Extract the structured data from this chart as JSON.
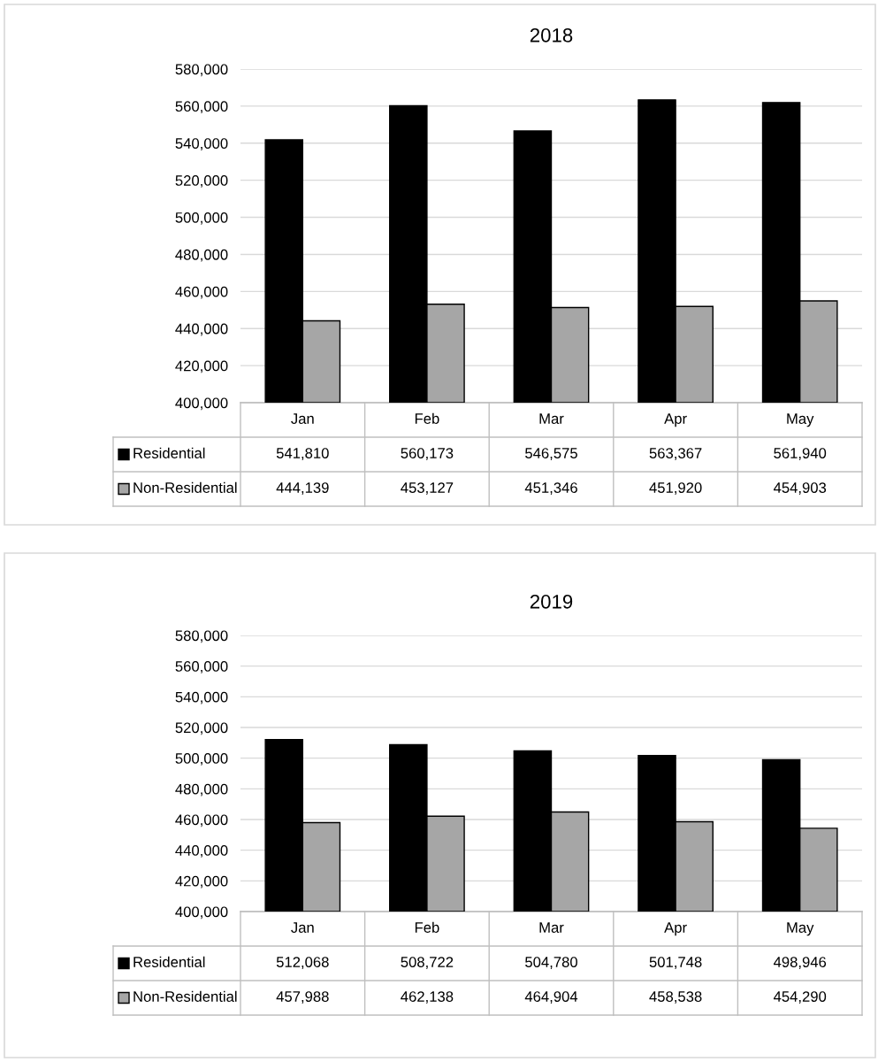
{
  "chart_data": [
    {
      "type": "bar",
      "title": "2018",
      "categories": [
        "Jan",
        "Feb",
        "Mar",
        "Apr",
        "May"
      ],
      "series": [
        {
          "name": "Residential",
          "color": "#000000",
          "values": [
            541810,
            560173,
            546575,
            563367,
            561940
          ],
          "value_labels": [
            "541,810",
            "560,173",
            "546,575",
            "563,367",
            "561,940"
          ]
        },
        {
          "name": "Non-Residential",
          "color": "#a6a6a6",
          "values": [
            444139,
            453127,
            451346,
            451920,
            454903
          ],
          "value_labels": [
            "444,139",
            "453,127",
            "451,346",
            "451,920",
            "454,903"
          ]
        }
      ],
      "ylim": [
        400000,
        580000
      ],
      "yticks": [
        {
          "value": 400000,
          "label": "400,000"
        },
        {
          "value": 420000,
          "label": "420,000"
        },
        {
          "value": 440000,
          "label": "440,000"
        },
        {
          "value": 460000,
          "label": "460,000"
        },
        {
          "value": 480000,
          "label": "480,000"
        },
        {
          "value": 500000,
          "label": "500,000"
        },
        {
          "value": 520000,
          "label": "520,000"
        },
        {
          "value": 540000,
          "label": "540,000"
        },
        {
          "value": 560000,
          "label": "560,000"
        },
        {
          "value": 580000,
          "label": "580,000"
        }
      ],
      "grid": "y",
      "legend": "bottom"
    },
    {
      "type": "bar",
      "title": "2019",
      "categories": [
        "Jan",
        "Feb",
        "Mar",
        "Apr",
        "May"
      ],
      "series": [
        {
          "name": "Residential",
          "color": "#000000",
          "values": [
            512068,
            508722,
            504780,
            501748,
            498946
          ],
          "value_labels": [
            "512,068",
            "508,722",
            "504,780",
            "501,748",
            "498,946"
          ]
        },
        {
          "name": "Non-Residential",
          "color": "#a6a6a6",
          "values": [
            457988,
            462138,
            464904,
            458538,
            454290
          ],
          "value_labels": [
            "457,988",
            "462,138",
            "464,904",
            "458,538",
            "454,290"
          ]
        }
      ],
      "ylim": [
        400000,
        580000
      ],
      "yticks": [
        {
          "value": 400000,
          "label": "400,000"
        },
        {
          "value": 420000,
          "label": "420,000"
        },
        {
          "value": 440000,
          "label": "440,000"
        },
        {
          "value": 460000,
          "label": "460,000"
        },
        {
          "value": 480000,
          "label": "480,000"
        },
        {
          "value": 500000,
          "label": "500,000"
        },
        {
          "value": 520000,
          "label": "520,000"
        },
        {
          "value": 540000,
          "label": "540,000"
        },
        {
          "value": 560000,
          "label": "560,000"
        },
        {
          "value": 580000,
          "label": "580,000"
        }
      ],
      "grid": "y",
      "legend": "bottom"
    }
  ]
}
